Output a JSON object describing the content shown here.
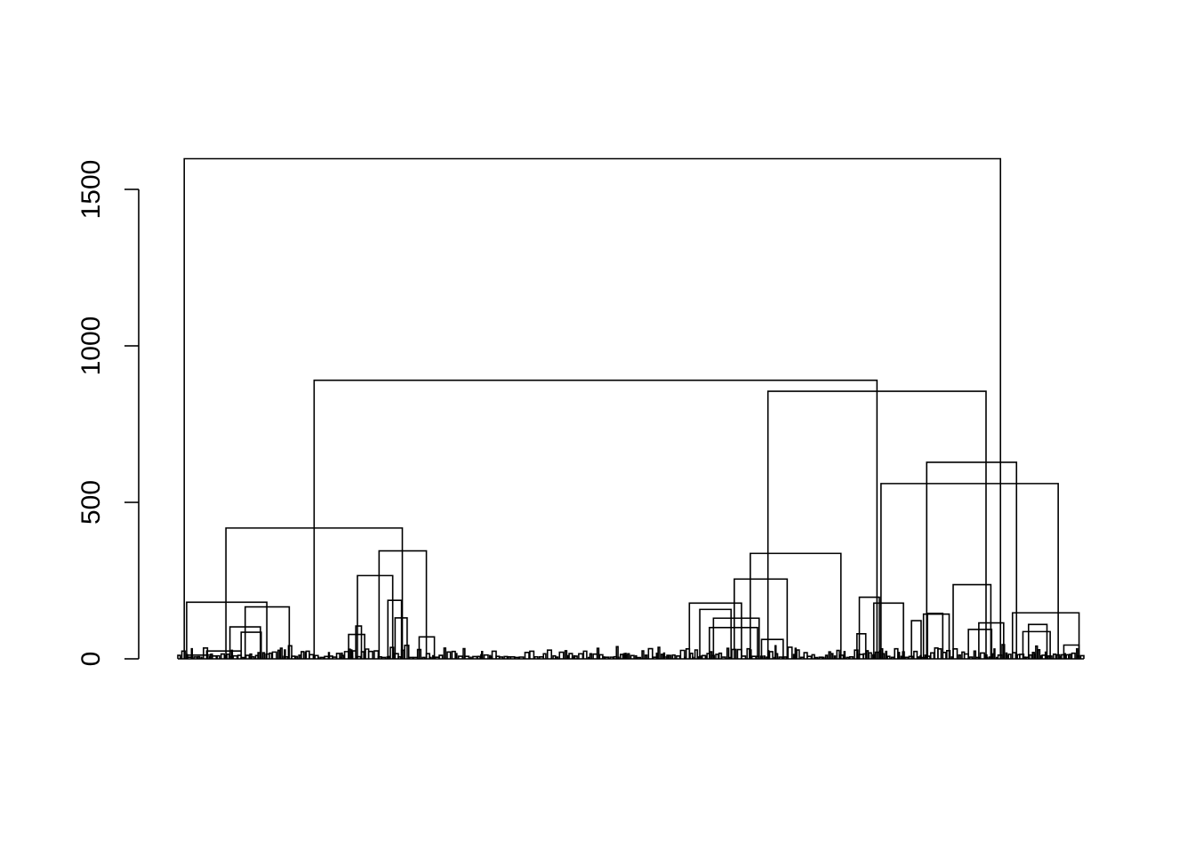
{
  "chart_data": {
    "type": "dendrogram",
    "title": "",
    "xlabel": "",
    "ylabel": "",
    "ylim": [
      0,
      1600
    ],
    "y_ticks": [
      0,
      500,
      1000,
      1500
    ],
    "y_tick_labels": [
      "0",
      "500",
      "1000",
      "1500"
    ],
    "x_tick_labels": [],
    "grid": false,
    "legend": "none",
    "line_color": "#000000",
    "merges": [
      {
        "left": 8,
        "right": 1026,
        "height": 1598
      },
      {
        "left": 170,
        "right": 872,
        "height": 890
      },
      {
        "left": 736,
        "right": 1008,
        "height": 855
      },
      {
        "left": 877,
        "right": 1098,
        "height": 560
      },
      {
        "left": 934,
        "right": 1046,
        "height": 628
      },
      {
        "left": 60,
        "right": 280,
        "height": 418
      },
      {
        "left": 251,
        "right": 310,
        "height": 345
      },
      {
        "left": 714,
        "right": 827,
        "height": 337
      },
      {
        "left": 694,
        "right": 760,
        "height": 255
      },
      {
        "left": 224,
        "right": 268,
        "height": 266
      },
      {
        "left": 967,
        "right": 1014,
        "height": 237
      },
      {
        "left": 11,
        "right": 111,
        "height": 181
      },
      {
        "left": 84,
        "right": 139,
        "height": 166
      },
      {
        "left": 1041,
        "right": 1124,
        "height": 147
      },
      {
        "left": 65,
        "right": 103,
        "height": 102
      },
      {
        "left": 79,
        "right": 104,
        "height": 85
      },
      {
        "left": 262,
        "right": 279,
        "height": 187
      },
      {
        "left": 271,
        "right": 286,
        "height": 131
      },
      {
        "left": 638,
        "right": 703,
        "height": 178
      },
      {
        "left": 651,
        "right": 690,
        "height": 158
      },
      {
        "left": 668,
        "right": 725,
        "height": 130
      },
      {
        "left": 663,
        "right": 723,
        "height": 100
      },
      {
        "left": 728,
        "right": 755,
        "height": 62
      },
      {
        "left": 850,
        "right": 875,
        "height": 197
      },
      {
        "left": 868,
        "right": 905,
        "height": 178
      },
      {
        "left": 847,
        "right": 858,
        "height": 80
      },
      {
        "left": 930,
        "right": 962,
        "height": 143
      },
      {
        "left": 935,
        "right": 954,
        "height": 145
      },
      {
        "left": 915,
        "right": 927,
        "height": 122
      },
      {
        "left": 999,
        "right": 1030,
        "height": 115
      },
      {
        "left": 986,
        "right": 1015,
        "height": 94
      },
      {
        "left": 1061,
        "right": 1084,
        "height": 110
      },
      {
        "left": 1054,
        "right": 1088,
        "height": 87
      },
      {
        "left": 1105,
        "right": 1124,
        "height": 44
      },
      {
        "left": 222,
        "right": 229,
        "height": 105
      },
      {
        "left": 213,
        "right": 233,
        "height": 78
      },
      {
        "left": 301,
        "right": 320,
        "height": 70
      },
      {
        "left": 36,
        "right": 79,
        "height": 25
      },
      {
        "left": 12,
        "right": 41,
        "height": 12
      }
    ]
  }
}
